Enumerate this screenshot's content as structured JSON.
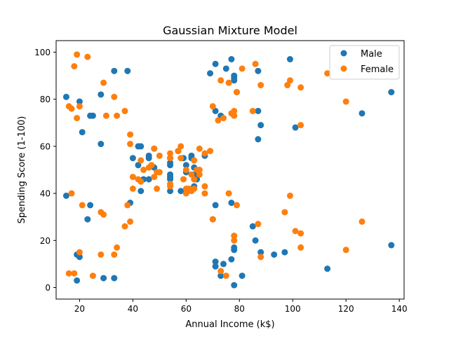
{
  "chart_data": {
    "type": "scatter",
    "title": "Gaussian Mixture Model",
    "xlabel": "Annual Income (k$)",
    "ylabel": "Spending Score (1-100)",
    "xlim": [
      11.2,
      141.8
    ],
    "ylim": [
      -4.9,
      104.9
    ],
    "xticks": [
      20,
      40,
      60,
      80,
      100,
      120,
      140
    ],
    "yticks": [
      0,
      20,
      40,
      60,
      80,
      100
    ],
    "grid": false,
    "legend": {
      "placement": "top-right"
    },
    "series": [
      {
        "name": "Male",
        "color": "#1f77b4",
        "points": [
          [
            15,
            39
          ],
          [
            15,
            81
          ],
          [
            19,
            3
          ],
          [
            19,
            14
          ],
          [
            20,
            79
          ],
          [
            20,
            13
          ],
          [
            21,
            66
          ],
          [
            23,
            29
          ],
          [
            24,
            35
          ],
          [
            24,
            73
          ],
          [
            25,
            73
          ],
          [
            28,
            82
          ],
          [
            28,
            61
          ],
          [
            29,
            4
          ],
          [
            33,
            4
          ],
          [
            33,
            92
          ],
          [
            38,
            92
          ],
          [
            39,
            36
          ],
          [
            40,
            55
          ],
          [
            42,
            52
          ],
          [
            42,
            60
          ],
          [
            43,
            60
          ],
          [
            43,
            41
          ],
          [
            44,
            46
          ],
          [
            46,
            46
          ],
          [
            46,
            56
          ],
          [
            46,
            55
          ],
          [
            48,
            59
          ],
          [
            48,
            51
          ],
          [
            54,
            41
          ],
          [
            54,
            48
          ],
          [
            54,
            53
          ],
          [
            54,
            46
          ],
          [
            54,
            55
          ],
          [
            54,
            52
          ],
          [
            54,
            47
          ],
          [
            57,
            58
          ],
          [
            58,
            41
          ],
          [
            59,
            55
          ],
          [
            60,
            52
          ],
          [
            60,
            49
          ],
          [
            62,
            56
          ],
          [
            62,
            55
          ],
          [
            63,
            43
          ],
          [
            63,
            48
          ],
          [
            63,
            51
          ],
          [
            64,
            46
          ],
          [
            67,
            56
          ],
          [
            69,
            91
          ],
          [
            70,
            29
          ],
          [
            71,
            35
          ],
          [
            71,
            95
          ],
          [
            71,
            11
          ],
          [
            71,
            75
          ],
          [
            71,
            9
          ],
          [
            73,
            5
          ],
          [
            73,
            73
          ],
          [
            74,
            10
          ],
          [
            75,
            93
          ],
          [
            77,
            12
          ],
          [
            77,
            97
          ],
          [
            77,
            36
          ],
          [
            78,
            1
          ],
          [
            78,
            90
          ],
          [
            78,
            16
          ],
          [
            78,
            89
          ],
          [
            78,
            17
          ],
          [
            78,
            88
          ],
          [
            79,
            83
          ],
          [
            81,
            5
          ],
          [
            85,
            26
          ],
          [
            86,
            20
          ],
          [
            87,
            63
          ],
          [
            87,
            75
          ],
          [
            87,
            92
          ],
          [
            88,
            15
          ],
          [
            88,
            69
          ],
          [
            93,
            14
          ],
          [
            97,
            15
          ],
          [
            99,
            97
          ],
          [
            101,
            68
          ],
          [
            113,
            8
          ],
          [
            126,
            74
          ],
          [
            137,
            18
          ],
          [
            137,
            83
          ]
        ]
      },
      {
        "name": "Female",
        "color": "#ff7f0e",
        "points": [
          [
            16,
            6
          ],
          [
            16,
            77
          ],
          [
            17,
            40
          ],
          [
            17,
            76
          ],
          [
            18,
            6
          ],
          [
            18,
            94
          ],
          [
            19,
            72
          ],
          [
            19,
            99
          ],
          [
            20,
            15
          ],
          [
            20,
            77
          ],
          [
            21,
            35
          ],
          [
            23,
            98
          ],
          [
            25,
            5
          ],
          [
            28,
            14
          ],
          [
            28,
            32
          ],
          [
            29,
            31
          ],
          [
            29,
            87
          ],
          [
            30,
            73
          ],
          [
            33,
            14
          ],
          [
            33,
            81
          ],
          [
            34,
            17
          ],
          [
            34,
            73
          ],
          [
            37,
            26
          ],
          [
            37,
            75
          ],
          [
            38,
            35
          ],
          [
            39,
            28
          ],
          [
            39,
            61
          ],
          [
            39,
            65
          ],
          [
            40,
            42
          ],
          [
            40,
            47
          ],
          [
            42,
            46
          ],
          [
            43,
            54
          ],
          [
            43,
            45
          ],
          [
            44,
            50
          ],
          [
            46,
            51
          ],
          [
            47,
            52
          ],
          [
            48,
            59
          ],
          [
            48,
            47
          ],
          [
            49,
            49
          ],
          [
            49,
            42
          ],
          [
            50,
            49
          ],
          [
            50,
            56
          ],
          [
            54,
            55
          ],
          [
            54,
            57
          ],
          [
            54,
            44
          ],
          [
            54,
            43
          ],
          [
            57,
            58
          ],
          [
            58,
            55
          ],
          [
            58,
            60
          ],
          [
            59,
            46
          ],
          [
            60,
            40
          ],
          [
            60,
            42
          ],
          [
            60,
            50
          ],
          [
            61,
            42
          ],
          [
            62,
            48
          ],
          [
            62,
            41
          ],
          [
            63,
            54
          ],
          [
            63,
            42
          ],
          [
            63,
            46
          ],
          [
            64,
            50
          ],
          [
            65,
            59
          ],
          [
            65,
            50
          ],
          [
            65,
            48
          ],
          [
            67,
            43
          ],
          [
            67,
            40
          ],
          [
            67,
            57
          ],
          [
            69,
            58
          ],
          [
            70,
            77
          ],
          [
            70,
            29
          ],
          [
            72,
            71
          ],
          [
            73,
            88
          ],
          [
            73,
            7
          ],
          [
            74,
            72
          ],
          [
            75,
            5
          ],
          [
            76,
            40
          ],
          [
            76,
            87
          ],
          [
            77,
            74
          ],
          [
            78,
            22
          ],
          [
            78,
            20
          ],
          [
            78,
            75
          ],
          [
            78,
            73
          ],
          [
            79,
            35
          ],
          [
            79,
            83
          ],
          [
            81,
            93
          ],
          [
            85,
            75
          ],
          [
            86,
            95
          ],
          [
            87,
            27
          ],
          [
            88,
            13
          ],
          [
            88,
            86
          ],
          [
            97,
            32
          ],
          [
            98,
            86
          ],
          [
            99,
            88
          ],
          [
            99,
            39
          ],
          [
            101,
            24
          ],
          [
            103,
            17
          ],
          [
            103,
            85
          ],
          [
            103,
            23
          ],
          [
            103,
            69
          ],
          [
            113,
            91
          ],
          [
            120,
            16
          ],
          [
            120,
            79
          ],
          [
            126,
            28
          ]
        ]
      }
    ]
  }
}
